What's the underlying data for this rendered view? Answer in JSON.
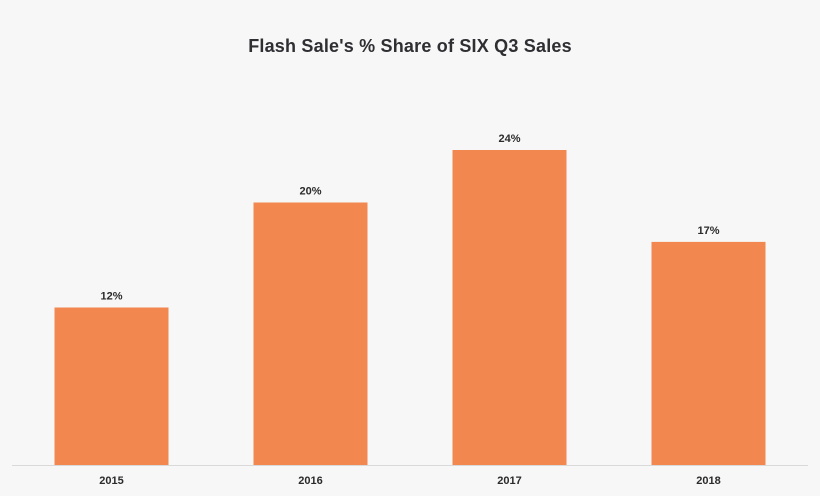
{
  "chart_data": {
    "type": "bar",
    "title": "Flash Sale's % Share of SIX Q3 Sales",
    "xlabel": "",
    "ylabel": "",
    "categories": [
      "2015",
      "2016",
      "2017",
      "2018"
    ],
    "values": [
      12,
      20,
      24,
      17
    ],
    "value_labels": [
      "12%",
      "20%",
      "24%",
      "17%"
    ],
    "ylim": [
      0,
      24
    ],
    "grid": false,
    "legend": "none",
    "colors": {
      "bar": "#f2874f",
      "background": "#f7f7f7",
      "axis": "#d9d9d9",
      "text": "#2e2e33"
    }
  }
}
